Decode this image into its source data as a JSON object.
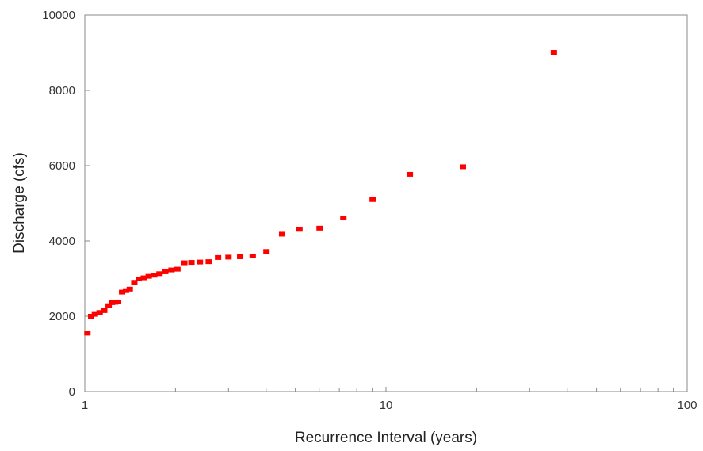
{
  "chart_data": {
    "type": "scatter",
    "title": "",
    "xlabel": "Recurrence Interval (years)",
    "ylabel": "Discharge (cfs)",
    "x_scale": "log",
    "xlim": [
      1,
      100
    ],
    "ylim": [
      0,
      10000
    ],
    "x_tick_labels": [
      "1",
      "10",
      "100"
    ],
    "y_tick_labels": [
      "0",
      "2000",
      "4000",
      "6000",
      "8000",
      "10000"
    ],
    "grid": false,
    "legend": "none",
    "marker_color": "#ff0000",
    "series": [
      {
        "x": [
          1.02,
          1.05,
          1.08,
          1.12,
          1.16,
          1.2,
          1.23,
          1.26,
          1.29,
          1.33,
          1.37,
          1.41,
          1.46,
          1.51,
          1.57,
          1.63,
          1.7,
          1.77,
          1.85,
          1.94,
          2.03,
          2.14,
          2.26,
          2.41,
          2.58,
          2.77,
          3.0,
          3.28,
          3.61,
          4.01,
          4.52,
          5.16,
          6.02,
          7.22,
          9.03,
          12.0,
          18.0,
          36.1
        ],
        "y": [
          1550,
          2000,
          2050,
          2100,
          2150,
          2280,
          2360,
          2370,
          2380,
          2640,
          2680,
          2720,
          2900,
          2990,
          3020,
          3060,
          3090,
          3130,
          3180,
          3230,
          3250,
          3420,
          3430,
          3440,
          3450,
          3560,
          3570,
          3580,
          3600,
          3720,
          4180,
          4310,
          4340,
          4610,
          5100,
          5770,
          5970,
          9010
        ]
      }
    ]
  }
}
